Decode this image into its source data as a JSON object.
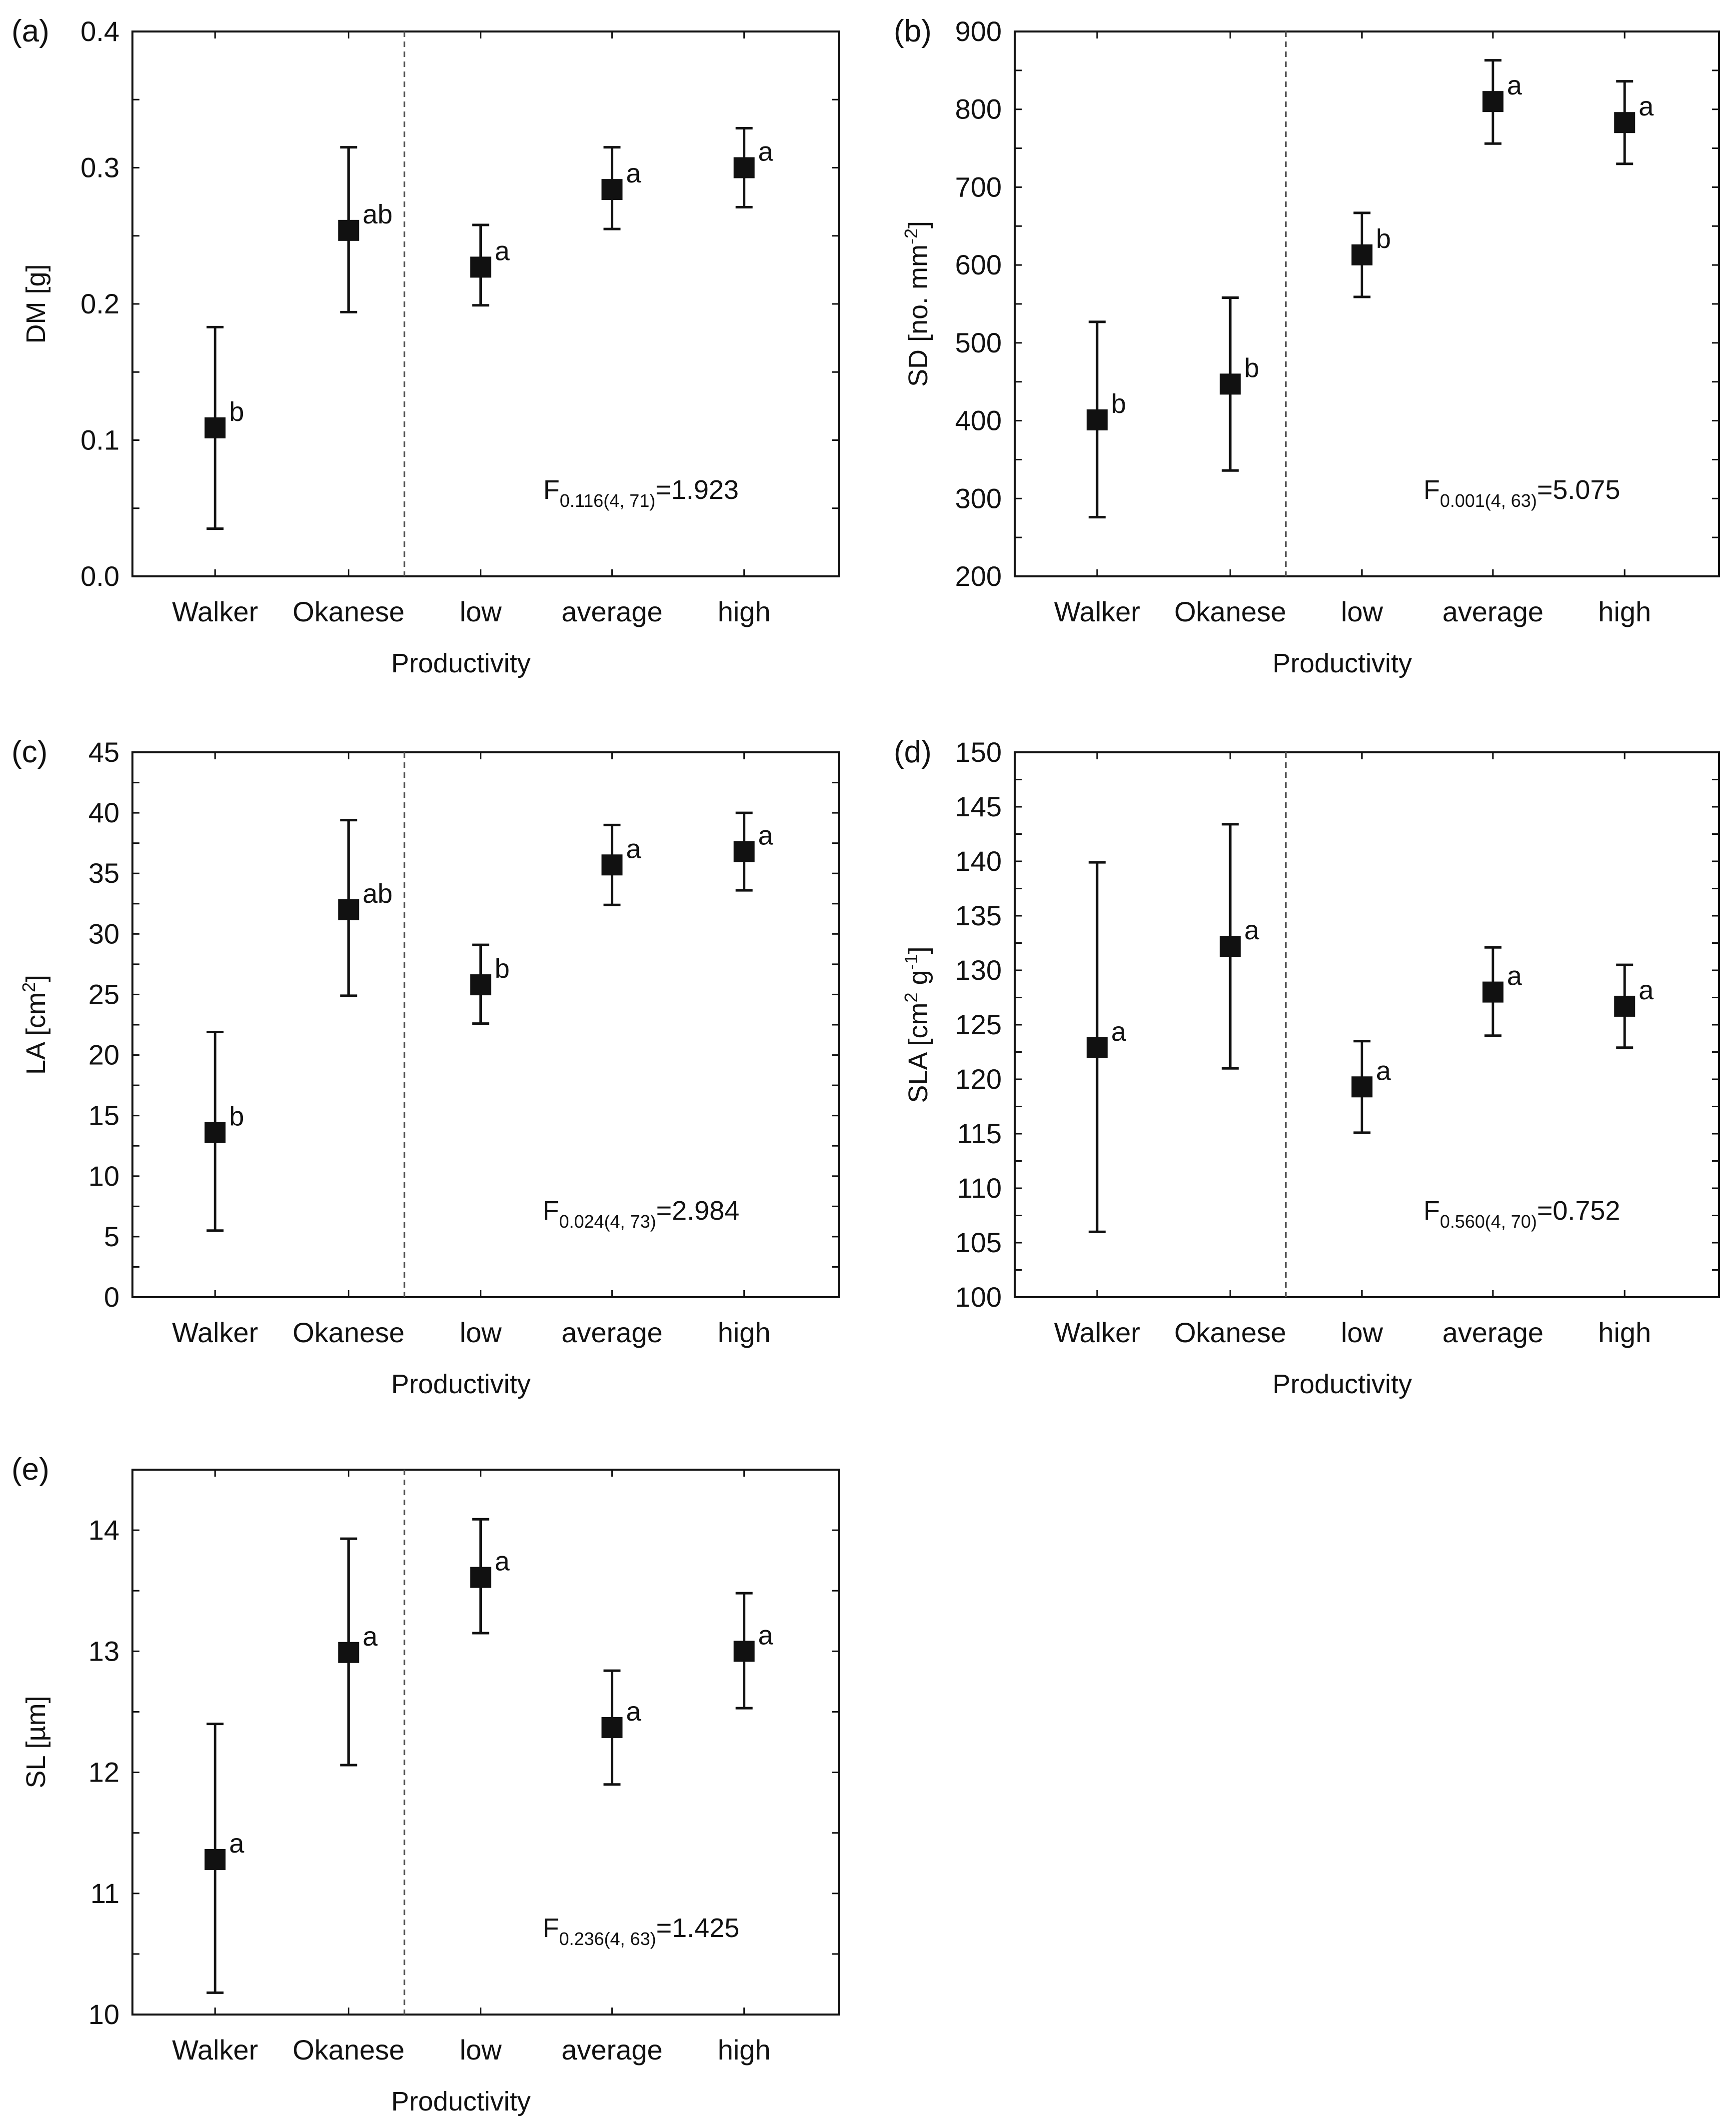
{
  "chart_data": [
    {
      "type": "scatter",
      "panel_label": "(a)",
      "ylabel": "DM [g]",
      "xlabel": "Productivity",
      "categories": [
        "Walker",
        "Okanese",
        "low",
        "average",
        "high"
      ],
      "ylim": [
        0.0,
        0.4
      ],
      "yticks": [
        "0.0",
        "0.1",
        "0.2",
        "0.3",
        "0.4"
      ],
      "ytick_values": [
        0.0,
        0.1,
        0.2,
        0.3,
        0.4
      ],
      "minor_tick_step": 0.05,
      "means": [
        0.109,
        0.254,
        0.227,
        0.284,
        0.3
      ],
      "lower": [
        0.035,
        0.194,
        0.199,
        0.255,
        0.271
      ],
      "upper": [
        0.183,
        0.315,
        0.258,
        0.315,
        0.329
      ],
      "letters": [
        "b",
        "ab",
        "a",
        "a",
        "a"
      ],
      "divider_after_index": 1,
      "f_stat": {
        "prefix": "F",
        "subscript": "0.116(4, 71)",
        "value": "=1.923"
      }
    },
    {
      "type": "scatter",
      "panel_label": "(b)",
      "ylabel": "SD [no. mm-2]",
      "ylabel_parts": {
        "base": "SD [no. mm",
        "sup": "-2",
        "end": "]"
      },
      "xlabel": "Productivity",
      "categories": [
        "Walker",
        "Okanese",
        "low",
        "average",
        "high"
      ],
      "ylim": [
        200,
        900
      ],
      "yticks": [
        "200",
        "300",
        "400",
        "500",
        "600",
        "700",
        "800",
        "900"
      ],
      "ytick_values": [
        200,
        300,
        400,
        500,
        600,
        700,
        800,
        900
      ],
      "minor_tick_step": 50,
      "means": [
        401,
        447,
        613,
        810,
        783
      ],
      "lower": [
        276,
        336,
        559,
        756,
        730
      ],
      "upper": [
        527,
        558,
        667,
        863,
        836
      ],
      "letters": [
        "b",
        "b",
        "b",
        "a",
        "a"
      ],
      "divider_after_index": 1,
      "f_stat": {
        "prefix": "F",
        "subscript": "0.001(4, 63)",
        "value": "=5.075"
      }
    },
    {
      "type": "scatter",
      "panel_label": "(c)",
      "ylabel": "LA [cm2]",
      "ylabel_parts": {
        "base": "LA [cm",
        "sup": "2",
        "end": "]"
      },
      "xlabel": "Productivity",
      "categories": [
        "Walker",
        "Okanese",
        "low",
        "average",
        "high"
      ],
      "ylim": [
        0,
        45
      ],
      "yticks": [
        "0",
        "5",
        "10",
        "15",
        "20",
        "25",
        "30",
        "35",
        "40",
        "45"
      ],
      "ytick_values": [
        0,
        5,
        10,
        15,
        20,
        25,
        30,
        35,
        40,
        45
      ],
      "minor_tick_step": 2.5,
      "means": [
        13.6,
        32.0,
        25.8,
        35.7,
        36.8
      ],
      "lower": [
        5.5,
        24.9,
        22.6,
        32.4,
        33.6
      ],
      "upper": [
        21.9,
        39.4,
        29.1,
        39.0,
        40.0
      ],
      "letters": [
        "b",
        "ab",
        "b",
        "a",
        "a"
      ],
      "divider_after_index": 1,
      "f_stat": {
        "prefix": "F",
        "subscript": "0.024(4, 73)",
        "value": "=2.984"
      }
    },
    {
      "type": "scatter",
      "panel_label": "(d)",
      "ylabel": "SLA [cm2 g-1]",
      "ylabel_parts": {
        "base": "SLA [cm",
        "sup": "2",
        "mid": " g",
        "sup2": "-1",
        "end": "]"
      },
      "xlabel": "Productivity",
      "categories": [
        "Walker",
        "Okanese",
        "low",
        "average",
        "high"
      ],
      "ylim": [
        100,
        150
      ],
      "yticks": [
        "100",
        "105",
        "110",
        "115",
        "120",
        "125",
        "130",
        "135",
        "140",
        "145",
        "150"
      ],
      "ytick_values": [
        100,
        105,
        110,
        115,
        120,
        125,
        130,
        135,
        140,
        145,
        150
      ],
      "minor_tick_step": 2.5,
      "means": [
        122.9,
        132.2,
        119.3,
        128.0,
        126.7
      ],
      "lower": [
        106.0,
        121.0,
        115.1,
        124.0,
        122.9
      ],
      "upper": [
        139.9,
        143.4,
        123.5,
        132.1,
        130.5
      ],
      "letters": [
        "a",
        "a",
        "a",
        "a",
        "a"
      ],
      "divider_after_index": 1,
      "f_stat": {
        "prefix": "F",
        "subscript": "0.560(4, 70)",
        "value": "=0.752"
      }
    },
    {
      "type": "scatter",
      "panel_label": "(e)",
      "ylabel": "SL [µm]",
      "xlabel": "Productivity",
      "categories": [
        "Walker",
        "Okanese",
        "low",
        "average",
        "high"
      ],
      "ylim": [
        10,
        14.5
      ],
      "yticks": [
        "10",
        "11",
        "12",
        "13",
        "14"
      ],
      "ytick_values": [
        10,
        11,
        12,
        13,
        14
      ],
      "minor_tick_step": 0.5,
      "means": [
        11.28,
        12.99,
        13.61,
        12.37,
        13.0
      ],
      "lower": [
        10.18,
        12.06,
        13.15,
        11.9,
        12.53
      ],
      "upper": [
        12.4,
        13.93,
        14.09,
        12.84,
        13.48
      ],
      "letters": [
        "a",
        "a",
        "a",
        "a",
        "a"
      ],
      "divider_after_index": 1,
      "f_stat": {
        "prefix": "F",
        "subscript": "0.236(4, 63)",
        "value": "=1.425"
      }
    }
  ]
}
